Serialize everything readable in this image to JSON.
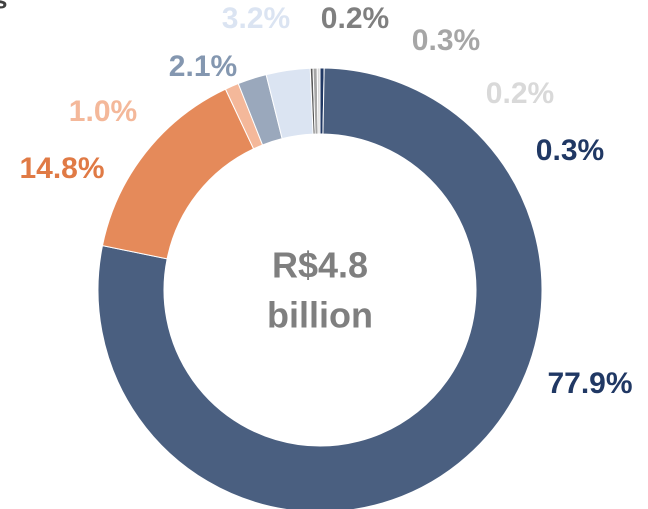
{
  "chart_data": {
    "type": "donut",
    "title": "s",
    "center_label": [
      "R$4.8",
      "billion"
    ],
    "categories": [
      null,
      null,
      null,
      null,
      null,
      null,
      null,
      null,
      null
    ],
    "values": [
      0.3,
      77.9,
      14.8,
      1.0,
      2.1,
      3.2,
      0.2,
      0.3,
      0.2
    ],
    "value_labels": [
      "0.3%",
      "77.9%",
      "14.8%",
      "1.0%",
      "2.1%",
      "3.2%",
      "0.2%",
      "0.3%",
      "0.2%"
    ],
    "colors": [
      "#203864",
      "#4a5f80",
      "#e58a5a",
      "#f4b89a",
      "#9aa8bc",
      "#dbe4f2",
      "#595959",
      "#a6a6a6",
      "#d9d9d9"
    ],
    "label_colors": [
      "#203864",
      "#203864",
      "#e07a45",
      "#f4b89a",
      "#8497b0",
      "#dbe4f2",
      "#7f7f7f",
      "#a6a6a6",
      "#d9d9d9"
    ]
  }
}
